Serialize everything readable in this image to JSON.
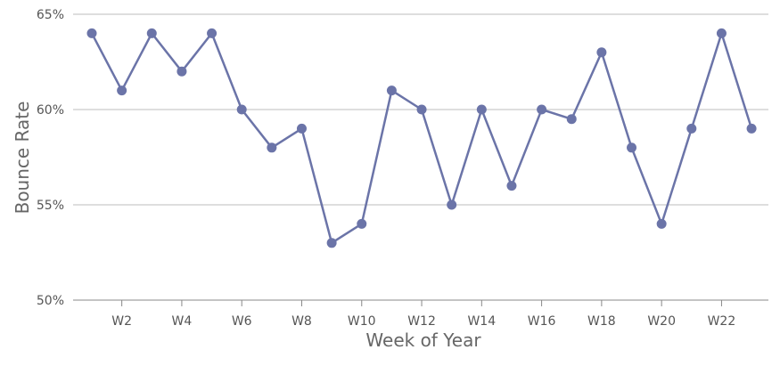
{
  "chart_data": {
    "type": "line",
    "title": "",
    "xlabel": "Week of Year",
    "ylabel": "Bounce Rate",
    "x": [
      "W1",
      "W2",
      "W3",
      "W4",
      "W5",
      "W6",
      "W7",
      "W8",
      "W9",
      "W10",
      "W11",
      "W12",
      "W13",
      "W14",
      "W15",
      "W16",
      "W17",
      "W18",
      "W19",
      "W20",
      "W21",
      "W22",
      "W23"
    ],
    "x_tick_labels": [
      "W2",
      "W4",
      "W6",
      "W8",
      "W10",
      "W12",
      "W14",
      "W16",
      "W18",
      "W20",
      "W22"
    ],
    "y_tick_labels": [
      "50%",
      "55%",
      "60%",
      "65%"
    ],
    "y_ticks": [
      50,
      55,
      60,
      65
    ],
    "ylim": [
      50,
      65
    ],
    "grid": "horizontal",
    "legend": "none",
    "series": [
      {
        "values": [
          64,
          61,
          64,
          62,
          64,
          60,
          58,
          59,
          53,
          54,
          61,
          60,
          55,
          60,
          56,
          60,
          59.5,
          63,
          58,
          54,
          59,
          64,
          59
        ]
      }
    ],
    "colors": {
      "series": "#6b74a8",
      "grid": "#bdbdbd",
      "axis": "#888888"
    }
  }
}
